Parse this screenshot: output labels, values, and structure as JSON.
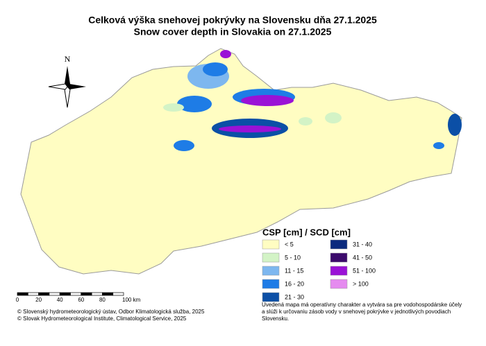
{
  "title": [
    "Celková výška snehovej pokrývky na Slovensku dňa 27.1.2025",
    "Snow cover depth in Slovakia on 27.1.2025"
  ],
  "compass": "N",
  "legend": {
    "title": "CSP [cm] / SCD [cm]",
    "items": [
      {
        "label": "< 5",
        "color": "#fffdc2"
      },
      {
        "label": "5 - 10",
        "color": "#d3f3c6"
      },
      {
        "label": "11 - 15",
        "color": "#7db7ef"
      },
      {
        "label": "16 - 20",
        "color": "#1e7ce6"
      },
      {
        "label": "21 - 30",
        "color": "#0b4fa6"
      },
      {
        "label": "31 - 40",
        "color": "#0b2a7e"
      },
      {
        "label": "41 - 50",
        "color": "#3c0b6c"
      },
      {
        "label": "51 - 100",
        "color": "#9a12d6"
      },
      {
        "label": "> 100",
        "color": "#e58bef"
      }
    ]
  },
  "scale_bar": {
    "labels": [
      "0",
      "20",
      "40",
      "60",
      "80",
      "100 km"
    ]
  },
  "credits": [
    "© Slovenský hydrometeorologický ústav, Odbor Klimatologická služba, 2025",
    "© Slovak Hydrometeorological Institute, Climatological Service, 2025"
  ],
  "note": [
    "Uvedená mapa má operatívny charakter a vytvára sa pre vodohospodárske účely",
    " a slúži k určovaniu zásob vody v snehovej pokrývke v jednotlivých povodiach",
    "Slovensku."
  ]
}
